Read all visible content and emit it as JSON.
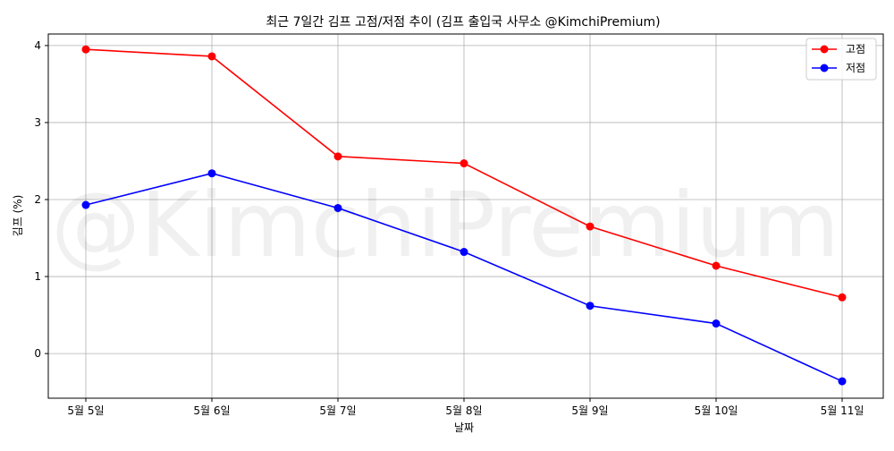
{
  "chart_data": {
    "type": "line",
    "title": "최근 7일간 김프 고점/저점 추이 (김프 출입국 사무소 @KimchiPremium)",
    "xlabel": "날짜",
    "ylabel": "김프 (%)",
    "categories": [
      "5월 5일",
      "5월 6일",
      "5월 7일",
      "5월 8일",
      "5월 9일",
      "5월 10일",
      "5월 11일"
    ],
    "ylim": [
      -0.58,
      4.15
    ],
    "yticks": [
      0,
      1,
      2,
      3,
      4
    ],
    "grid": true,
    "legend_position": "top-right",
    "watermark": "@KimchiPremium",
    "series": [
      {
        "name": "고점",
        "color": "#ff0000",
        "values": [
          3.95,
          3.86,
          2.56,
          2.47,
          1.65,
          1.14,
          0.73
        ]
      },
      {
        "name": "저점",
        "color": "#0000ff",
        "values": [
          1.93,
          2.34,
          1.89,
          1.32,
          0.62,
          0.39,
          -0.36
        ]
      }
    ]
  }
}
